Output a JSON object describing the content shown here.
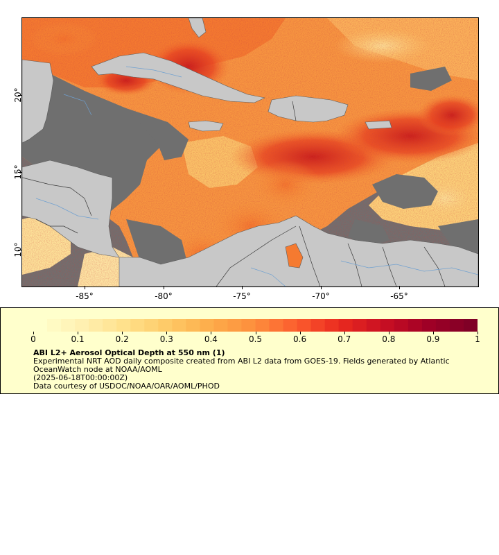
{
  "map": {
    "lat_ticks": [
      "20°",
      "15°",
      "10°"
    ],
    "lon_ticks": [
      "-85°",
      "-80°",
      "-75°",
      "-70°",
      "-65°"
    ],
    "colors": {
      "ocean_nodata": "#6f6f6f",
      "land": "#c8c8c8",
      "borders": "#3a3a3a",
      "rivers": "#6fa0d0"
    }
  },
  "legend": {
    "colorbar_labels": [
      "0",
      "0.1",
      "0.2",
      "0.3",
      "0.4",
      "0.5",
      "0.6",
      "0.7",
      "0.8",
      "0.9",
      "1"
    ],
    "title": "ABI L2+ Aerosol Optical Depth at 550 nm (1)",
    "description": "Experimental NRT AOD daily composite created from ABI L2 data from GOES-19. Fields generated by Atlantic OceanWatch node at NOAA/AOML",
    "date": "(2025-06-18T00:00:00Z)",
    "credit": "Data courtesy of USDOC/NOAA/OAR/AOML/PHOD",
    "colorscale": [
      "#ffffcc",
      "#fff0b0",
      "#ffe08a",
      "#fec965",
      "#fdab4a",
      "#fd8d3c",
      "#fc5a2d",
      "#e8281f",
      "#c80f23",
      "#a00026",
      "#800026"
    ]
  }
}
